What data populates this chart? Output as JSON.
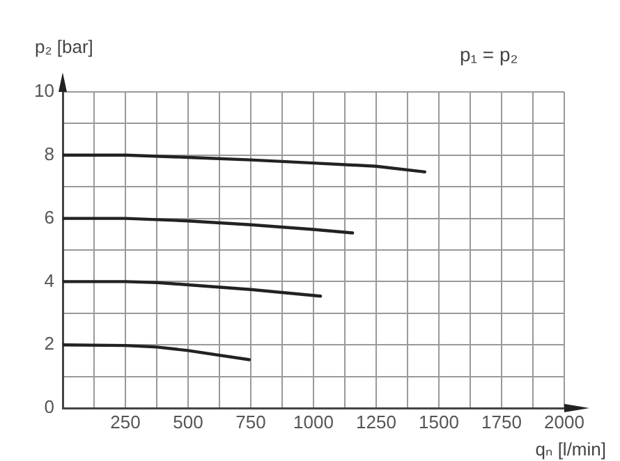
{
  "chart_data": {
    "type": "line",
    "xlabel": "qₙ [l/min]",
    "ylabel": "p₂ [bar]",
    "annotations": [
      "p₁ = p₂"
    ],
    "series": [
      {
        "color": "#222222",
        "x": [
          0,
          250,
          500,
          750,
          1000,
          1250,
          1444
        ],
        "values": [
          8.0,
          8.0,
          7.93,
          7.85,
          7.75,
          7.65,
          7.47
        ]
      },
      {
        "color": "#222222",
        "x": [
          0,
          250,
          500,
          750,
          1000,
          1156
        ],
        "values": [
          6.0,
          6.0,
          5.92,
          5.8,
          5.65,
          5.54
        ]
      },
      {
        "color": "#222222",
        "x": [
          0,
          250,
          375,
          500,
          750,
          1028
        ],
        "values": [
          4.0,
          4.0,
          3.97,
          3.9,
          3.75,
          3.54
        ]
      },
      {
        "color": "#222222",
        "x": [
          0,
          250,
          375,
          500,
          744
        ],
        "values": [
          2.0,
          1.98,
          1.93,
          1.82,
          1.53
        ]
      }
    ],
    "xlim": [
      0,
      2000
    ],
    "xticks": [
      {
        "value": 0,
        "label": null
      },
      {
        "value": 125,
        "label": null
      },
      250,
      {
        "value": 375,
        "label": null
      },
      500,
      {
        "value": 625,
        "label": null
      },
      750,
      {
        "value": 875,
        "label": null
      },
      1000,
      {
        "value": 1125,
        "label": null
      },
      1250,
      {
        "value": 1375,
        "label": null
      },
      1500,
      {
        "value": 1625,
        "label": null
      },
      1750,
      {
        "value": 1875,
        "label": null
      },
      2000
    ],
    "ylim": [
      0,
      10
    ],
    "yticks": [
      0,
      {
        "value": 1,
        "label": null
      },
      2,
      {
        "value": 3,
        "label": null
      },
      4,
      {
        "value": 5,
        "label": null
      },
      6,
      {
        "value": 7,
        "label": null
      },
      8,
      {
        "value": 9,
        "label": null
      },
      10
    ],
    "grid": true,
    "legend": false,
    "marker": "none",
    "line_style": "solid"
  }
}
